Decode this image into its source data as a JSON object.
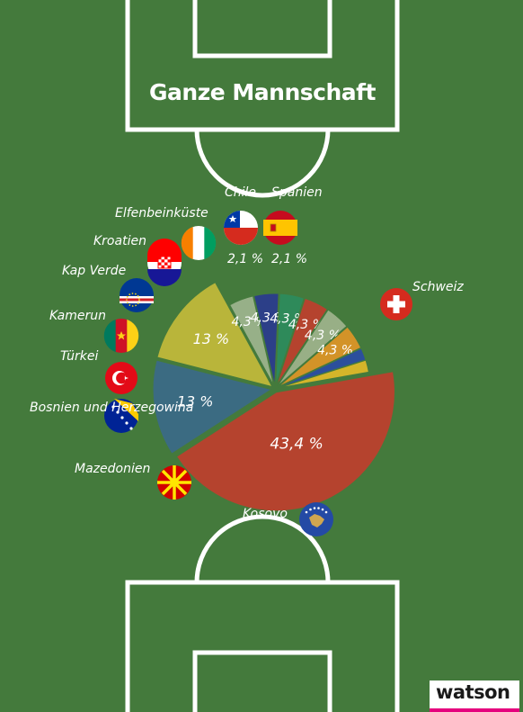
{
  "title": "Ganze Mannschaft",
  "brand": "watson",
  "colors": {
    "field": "#447a3c",
    "lines": "#ffffff",
    "brand_accent": "#e5007d"
  },
  "chart_data": {
    "type": "pie",
    "title": "Ganze Mannschaft",
    "series": [
      {
        "name": "Schweiz",
        "value": 43.4,
        "label": "43,4 %",
        "color": "#b5432e",
        "flag": "switzerland-flag-icon"
      },
      {
        "name": "Kosovo",
        "value": 13,
        "label": "13 %",
        "color": "#3b6b82",
        "flag": "kosovo-flag-icon"
      },
      {
        "name": "Mazedonien",
        "value": 13,
        "label": "13 %",
        "color": "#b9b53a",
        "flag": "macedonia-flag-icon"
      },
      {
        "name": "Bosnien und Herzegowina",
        "value": 4.3,
        "label": "4,3 %",
        "color": "#97b088",
        "flag": "bosnia-flag-icon"
      },
      {
        "name": "Türkei",
        "value": 4.3,
        "label": "4,3 %",
        "color": "#2c3f88",
        "flag": "turkey-flag-icon"
      },
      {
        "name": "Kamerun",
        "value": 4.3,
        "label": "4,3 %",
        "color": "#2e8a5a",
        "flag": "cameroon-flag-icon"
      },
      {
        "name": "Kap Verde",
        "value": 4.3,
        "label": "4,3 %",
        "color": "#b5432e",
        "flag": "cape-verde-flag-icon"
      },
      {
        "name": "Kroatien",
        "value": 4.3,
        "label": "4,3 %",
        "color": "#98af86",
        "flag": "croatia-flag-icon"
      },
      {
        "name": "Elfenbeinküste",
        "value": 4.3,
        "label": "4,3 %",
        "color": "#d39328",
        "flag": "ivory-coast-flag-icon"
      },
      {
        "name": "Chile",
        "value": 2.1,
        "label": "2,1 %",
        "color": "#2c4f9c",
        "flag": "chile-flag-icon"
      },
      {
        "name": "Spanien",
        "value": 2.1,
        "label": "2,1 %",
        "color": "#d4b52a",
        "flag": "spain-flag-icon"
      }
    ],
    "legend": "country labels with flags around the pie"
  }
}
